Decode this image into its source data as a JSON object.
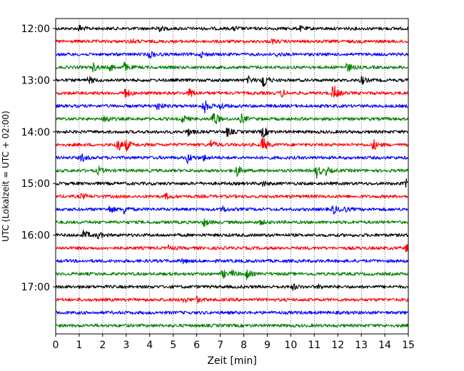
{
  "chart_data": {
    "type": "line",
    "title": "",
    "xlabel": "Zeit  [min]",
    "ylabel": "UTC (Lokalzeit = UTC + 02:00)",
    "xlim": [
      0,
      15
    ],
    "xticks": [
      "0",
      "1",
      "2",
      "3",
      "4",
      "5",
      "6",
      "7",
      "8",
      "9",
      "10",
      "11",
      "12",
      "13",
      "14",
      "15"
    ],
    "yticks": [
      "12:00",
      "13:00",
      "14:00",
      "15:00",
      "16:00",
      "17:00"
    ],
    "grid": "vertical dotted",
    "legend": "none",
    "trace_minutes_per_row": 15,
    "trace_colors": [
      "#000000",
      "#ff0000",
      "#0000ff",
      "#008000"
    ],
    "traces": [
      {
        "start": "12:00",
        "color": "#000000",
        "events": [
          [
            1.0,
            0.5
          ],
          [
            4.3,
            0.7
          ],
          [
            7.6,
            0.3
          ],
          [
            10.4,
            0.3
          ]
        ]
      },
      {
        "start": "12:15",
        "color": "#ff0000",
        "events": [
          [
            3.2,
            0.3
          ],
          [
            9.2,
            0.3
          ]
        ]
      },
      {
        "start": "12:30",
        "color": "#0000ff",
        "events": [
          [
            4.0,
            0.6
          ],
          [
            6.2,
            0.4
          ],
          [
            9.4,
            0.3
          ]
        ]
      },
      {
        "start": "12:45",
        "color": "#008000",
        "events": [
          [
            1.6,
            0.6
          ],
          [
            2.3,
            0.5
          ],
          [
            2.9,
            0.7
          ],
          [
            12.4,
            0.7
          ]
        ]
      },
      {
        "start": "13:00",
        "color": "#000000",
        "events": [
          [
            1.4,
            0.6
          ],
          [
            8.2,
            0.5
          ],
          [
            8.8,
            1.6
          ],
          [
            13.0,
            0.6
          ]
        ]
      },
      {
        "start": "13:15",
        "color": "#ff0000",
        "events": [
          [
            2.9,
            1.0
          ],
          [
            5.7,
            0.8
          ],
          [
            9.6,
            0.6
          ],
          [
            11.8,
            1.4
          ]
        ]
      },
      {
        "start": "13:30",
        "color": "#0000ff",
        "events": [
          [
            4.3,
            0.7
          ],
          [
            6.3,
            1.2
          ],
          [
            7.0,
            0.6
          ]
        ]
      },
      {
        "start": "13:45",
        "color": "#008000",
        "events": [
          [
            2.1,
            0.8
          ],
          [
            5.4,
            0.6
          ],
          [
            6.7,
            1.4
          ],
          [
            7.9,
            0.7
          ]
        ]
      },
      {
        "start": "14:00",
        "color": "#000000",
        "events": [
          [
            5.6,
            0.6
          ],
          [
            7.3,
            0.7
          ],
          [
            8.8,
            0.9
          ]
        ]
      },
      {
        "start": "14:15",
        "color": "#ff0000",
        "events": [
          [
            2.6,
            1.4
          ],
          [
            3.0,
            0.8
          ],
          [
            6.6,
            0.7
          ],
          [
            8.8,
            1.3
          ],
          [
            13.5,
            0.9
          ]
        ]
      },
      {
        "start": "14:30",
        "color": "#0000ff",
        "events": [
          [
            1.1,
            0.6
          ],
          [
            5.6,
            0.8
          ],
          [
            6.3,
            0.4
          ]
        ]
      },
      {
        "start": "14:45",
        "color": "#008000",
        "events": [
          [
            1.8,
            0.6
          ],
          [
            7.7,
            0.9
          ],
          [
            11.1,
            1.0
          ],
          [
            11.5,
            0.5
          ]
        ]
      },
      {
        "start": "15:00",
        "color": "#000000",
        "events": [
          [
            8.8,
            0.4
          ],
          [
            14.9,
            0.6
          ]
        ]
      },
      {
        "start": "15:15",
        "color": "#ff0000",
        "events": [
          [
            1.1,
            0.4
          ],
          [
            4.7,
            0.4
          ]
        ]
      },
      {
        "start": "15:30",
        "color": "#0000ff",
        "events": [
          [
            2.3,
            0.6
          ],
          [
            2.9,
            0.7
          ],
          [
            7.1,
            0.5
          ],
          [
            11.8,
            0.7
          ],
          [
            12.2,
            0.5
          ]
        ]
      },
      {
        "start": "15:45",
        "color": "#008000",
        "events": [
          [
            6.3,
            0.6
          ],
          [
            8.7,
            0.3
          ]
        ]
      },
      {
        "start": "16:00",
        "color": "#000000",
        "events": [
          [
            1.2,
            0.8
          ],
          [
            1.8,
            0.5
          ]
        ]
      },
      {
        "start": "16:15",
        "color": "#ff0000",
        "events": [
          [
            4.8,
            0.3
          ],
          [
            14.9,
            0.5
          ]
        ]
      },
      {
        "start": "16:30",
        "color": "#0000ff",
        "events": [
          [
            5.4,
            0.3
          ]
        ]
      },
      {
        "start": "16:45",
        "color": "#008000",
        "events": [
          [
            7.1,
            0.6
          ],
          [
            7.5,
            0.5
          ],
          [
            8.1,
            0.8
          ]
        ]
      },
      {
        "start": "17:00",
        "color": "#000000",
        "events": [
          [
            10.1,
            0.4
          ],
          [
            11.2,
            0.3
          ]
        ]
      },
      {
        "start": "17:15",
        "color": "#ff0000",
        "events": [
          [
            5.4,
            0.5
          ],
          [
            6.0,
            0.4
          ]
        ]
      },
      {
        "start": "17:30",
        "color": "#0000ff",
        "events": []
      },
      {
        "start": "17:45",
        "color": "#008000",
        "events": []
      }
    ]
  }
}
